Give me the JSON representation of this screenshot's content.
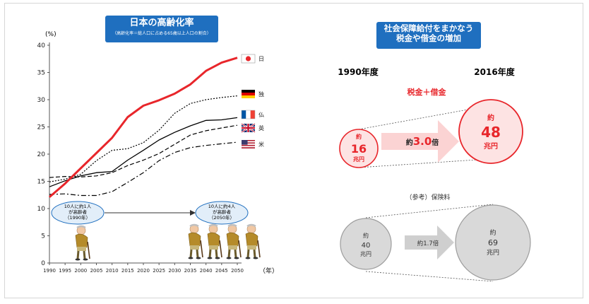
{
  "chart_data": {
    "type": "line",
    "title": "日本の高齢化率",
    "subtitle": "（高齢化率＝総人口に占める65歳以上人口の割合）",
    "ylabel": "(%)",
    "xlabel": "（年）",
    "ylim": [
      0,
      40
    ],
    "yticks": [
      0,
      5,
      10,
      15,
      20,
      25,
      30,
      35,
      40
    ],
    "x": [
      1990,
      1995,
      2000,
      2005,
      2010,
      2015,
      2020,
      2025,
      2030,
      2035,
      2040,
      2045,
      2050
    ],
    "grid": false,
    "legend": "right-end labels with flags",
    "series": [
      {
        "name": "日",
        "flag": "japan-flag",
        "color": "#e8262b",
        "style": "solid-thick",
        "values": [
          12.1,
          14.6,
          17.4,
          20.2,
          23.0,
          26.8,
          28.9,
          29.9,
          31.1,
          32.8,
          35.3,
          36.8,
          37.7
        ]
      },
      {
        "name": "独",
        "flag": "germany-flag",
        "color": "#000000",
        "style": "dotted",
        "values": [
          14.9,
          15.4,
          16.3,
          18.8,
          20.7,
          21.0,
          22.1,
          24.4,
          27.5,
          29.3,
          30.0,
          30.4,
          30.7
        ]
      },
      {
        "name": "仏",
        "flag": "france-flag",
        "color": "#000000",
        "style": "solid",
        "values": [
          14.0,
          15.1,
          16.0,
          16.6,
          16.8,
          18.9,
          20.7,
          22.6,
          24.0,
          25.2,
          26.2,
          26.3,
          26.7
        ]
      },
      {
        "name": "英",
        "flag": "uk-flag",
        "color": "#000000",
        "style": "dashed",
        "values": [
          15.7,
          15.9,
          15.8,
          16.0,
          16.6,
          17.9,
          18.9,
          20.1,
          21.8,
          23.5,
          24.3,
          24.8,
          25.3
        ]
      },
      {
        "name": "米",
        "flag": "usa-flag",
        "color": "#000000",
        "style": "dash-dot",
        "values": [
          12.6,
          12.7,
          12.4,
          12.4,
          13.1,
          14.8,
          16.6,
          18.8,
          20.3,
          21.2,
          21.6,
          21.9,
          22.2
        ]
      }
    ],
    "annotations": [
      {
        "text": "10人に約1人が高齢者（1990年）",
        "lines": [
          "10人に約1人",
          "が高齢者",
          "（1990年）"
        ]
      },
      {
        "text": "10人に約4人が高齢者（2050年）",
        "lines": [
          "10人に約4人",
          "が高齢者",
          "（2050年）"
        ]
      }
    ]
  },
  "right_panel": {
    "title_lines": [
      "社会保障給付をまかなう",
      "税金や借金の増加"
    ],
    "year_left": "1990年度",
    "year_right": "2016年度",
    "tax_label": "税金＋借金",
    "tax_left": {
      "prefix": "約",
      "value": "16",
      "unit": "兆円"
    },
    "tax_right": {
      "prefix": "約",
      "value": "48",
      "unit": "兆円"
    },
    "tax_ratio": {
      "prefix": "約",
      "value": "3.0",
      "suffix": "倍"
    },
    "premium_label": "（参考）保険料",
    "premium_left": {
      "prefix": "約",
      "value": "40",
      "unit": "兆円"
    },
    "premium_right": {
      "prefix": "約",
      "value": "69",
      "unit": "兆円"
    },
    "premium_ratio": "約1.7倍",
    "colors": {
      "tax": "#e8262b",
      "tax_fill": "#fde3e3",
      "premium": "#9d9d9d",
      "premium_fill": "#d9d9d9",
      "banner": "#1f6fbf"
    }
  }
}
